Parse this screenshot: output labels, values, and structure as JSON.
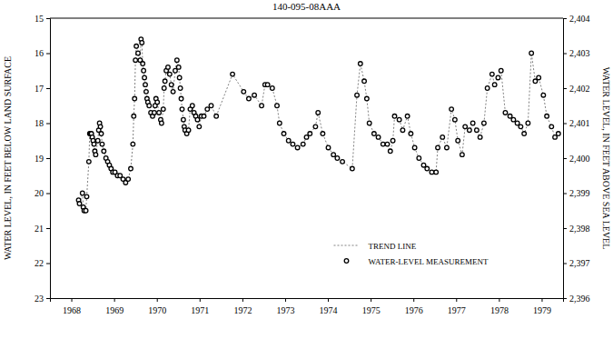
{
  "chart_data": {
    "type": "line",
    "title": "140-095-08AAA",
    "ylabel": "WATER LEVEL, IN FEET BELOW LAND SURFACE",
    "y2label": "WATER LEVEL, IN FEET ABOVE SEA LEVEL",
    "xlim": [
      1968,
      1980
    ],
    "xticks": [
      {
        "value": 1968.5,
        "label": "1968"
      },
      {
        "value": 1969.5,
        "label": "1969"
      },
      {
        "value": 1970.5,
        "label": "1970"
      },
      {
        "value": 1971.5,
        "label": "1971"
      },
      {
        "value": 1972.5,
        "label": "1972"
      },
      {
        "value": 1973.5,
        "label": "1973"
      },
      {
        "value": 1974.5,
        "label": "1974"
      },
      {
        "value": 1975.5,
        "label": "1975"
      },
      {
        "value": 1976.5,
        "label": "1976"
      },
      {
        "value": 1977.5,
        "label": "1977"
      },
      {
        "value": 1978.5,
        "label": "1978"
      },
      {
        "value": 1979.5,
        "label": "1979"
      }
    ],
    "ylim": [
      23,
      15
    ],
    "yticks": [
      15,
      16,
      17,
      18,
      19,
      20,
      21,
      22,
      23
    ],
    "y2lim": [
      2396,
      2404
    ],
    "y2ticks": [
      {
        "value": 2404,
        "label": "2,404"
      },
      {
        "value": 2403,
        "label": "2,403"
      },
      {
        "value": 2402,
        "label": "2,402"
      },
      {
        "value": 2401,
        "label": "2,401"
      },
      {
        "value": 2400,
        "label": "2,400"
      },
      {
        "value": 2399,
        "label": "2,399"
      },
      {
        "value": 2398,
        "label": "2,398"
      },
      {
        "value": 2397,
        "label": "2,397"
      },
      {
        "value": 2396,
        "label": "2,396"
      }
    ],
    "legend": "lower center",
    "x": [
      1968.67,
      1968.69,
      1968.76,
      1968.78,
      1968.8,
      1968.84,
      1968.86,
      1968.91,
      1968.93,
      1968.95,
      1968.97,
      1968.99,
      1969.01,
      1969.03,
      1969.05,
      1969.07,
      1969.12,
      1969.14,
      1969.16,
      1969.18,
      1969.2,
      1969.22,
      1969.26,
      1969.31,
      1969.35,
      1969.39,
      1969.43,
      1969.47,
      1969.52,
      1969.58,
      1969.64,
      1969.71,
      1969.77,
      1969.83,
      1969.89,
      1969.94,
      1969.96,
      1969.98,
      1970.0,
      1970.02,
      1970.06,
      1970.11,
      1970.13,
      1970.15,
      1970.17,
      1970.19,
      1970.21,
      1970.23,
      1970.25,
      1970.27,
      1970.29,
      1970.32,
      1970.36,
      1970.4,
      1970.44,
      1970.46,
      1970.48,
      1970.51,
      1970.55,
      1970.59,
      1970.61,
      1970.65,
      1970.67,
      1970.69,
      1970.72,
      1970.76,
      1970.8,
      1970.84,
      1970.88,
      1970.93,
      1970.97,
      1971.01,
      1971.03,
      1971.05,
      1971.07,
      1971.09,
      1971.12,
      1971.14,
      1971.16,
      1971.2,
      1971.24,
      1971.28,
      1971.33,
      1971.37,
      1971.41,
      1971.45,
      1971.49,
      1971.54,
      1971.6,
      1971.68,
      1971.77,
      1971.89,
      1972.27,
      1972.53,
      1972.65,
      1972.78,
      1972.95,
      1973.03,
      1973.09,
      1973.2,
      1973.31,
      1973.37,
      1973.47,
      1973.58,
      1973.68,
      1973.79,
      1973.92,
      1974.0,
      1974.08,
      1974.21,
      1974.27,
      1974.38,
      1974.51,
      1974.63,
      1974.72,
      1974.84,
      1975.07,
      1975.18,
      1975.26,
      1975.35,
      1975.41,
      1975.47,
      1975.58,
      1975.68,
      1975.79,
      1975.89,
      1975.96,
      1976.02,
      1976.06,
      1976.17,
      1976.25,
      1976.36,
      1976.44,
      1976.53,
      1976.63,
      1976.74,
      1976.82,
      1976.93,
      1977.03,
      1977.07,
      1977.18,
      1977.28,
      1977.39,
      1977.47,
      1977.54,
      1977.64,
      1977.71,
      1977.81,
      1977.89,
      1977.98,
      1978.06,
      1978.15,
      1978.23,
      1978.34,
      1978.4,
      1978.48,
      1978.55,
      1978.65,
      1978.76,
      1978.84,
      1978.93,
      1979.01,
      1979.09,
      1979.18,
      1979.26,
      1979.35,
      1979.43,
      1979.54,
      1979.62,
      1979.73,
      1979.81,
      1979.89
    ],
    "series": [
      {
        "name": "TREND LINE",
        "type": "line",
        "line_style": "dotted",
        "color": "#808080",
        "values": [
          20.2,
          20.3,
          20.0,
          20.4,
          20.5,
          20.5,
          20.1,
          19.1,
          18.3,
          18.3,
          18.3,
          18.4,
          18.5,
          18.6,
          18.8,
          18.9,
          18.5,
          18.2,
          18.0,
          18.1,
          18.3,
          18.6,
          18.8,
          19.0,
          19.1,
          19.2,
          19.3,
          19.4,
          19.4,
          19.5,
          19.5,
          19.6,
          19.7,
          19.6,
          19.3,
          18.6,
          17.8,
          17.3,
          16.2,
          15.8,
          16.0,
          16.2,
          15.6,
          15.7,
          16.3,
          16.5,
          16.7,
          16.9,
          17.1,
          17.3,
          17.4,
          17.5,
          17.7,
          17.8,
          17.7,
          17.5,
          17.3,
          17.4,
          17.7,
          17.9,
          18.0,
          17.6,
          17.0,
          16.8,
          16.5,
          16.4,
          16.6,
          16.9,
          17.1,
          16.5,
          16.2,
          16.4,
          16.7,
          17.0,
          17.3,
          17.6,
          17.9,
          18.1,
          18.2,
          18.3,
          18.2,
          17.6,
          17.5,
          17.7,
          17.8,
          17.9,
          18.1,
          17.8,
          17.8,
          17.6,
          17.5,
          17.8,
          16.6,
          17.1,
          17.3,
          17.2,
          17.5,
          16.9,
          16.9,
          17.0,
          17.5,
          18.0,
          18.3,
          18.5,
          18.6,
          18.7,
          18.6,
          18.4,
          18.3,
          18.1,
          17.7,
          18.3,
          18.7,
          18.9,
          19.0,
          19.1,
          19.3,
          17.2,
          16.3,
          16.8,
          17.3,
          18.0,
          18.3,
          18.4,
          18.6,
          18.6,
          18.8,
          18.5,
          17.8,
          17.9,
          18.2,
          17.8,
          18.3,
          18.7,
          19.0,
          19.2,
          19.3,
          19.4,
          19.4,
          18.7,
          18.4,
          18.7,
          17.6,
          17.9,
          18.5,
          18.9,
          18.1,
          18.2,
          18.0,
          18.2,
          18.4,
          18.0,
          17.0,
          16.6,
          16.9,
          16.7,
          16.5,
          17.7,
          17.8,
          17.9,
          18.0,
          18.1,
          18.3,
          18.0,
          16.0,
          16.8,
          16.7,
          17.2,
          17.8,
          18.1,
          18.4,
          18.3
        ]
      },
      {
        "name": "WATER-LEVEL MEASUREMENT",
        "type": "scatter",
        "marker": "circle",
        "color": "#000000",
        "values": [
          20.2,
          20.3,
          20.0,
          20.4,
          20.5,
          20.5,
          20.1,
          19.1,
          18.3,
          18.3,
          18.3,
          18.4,
          18.5,
          18.6,
          18.8,
          18.9,
          18.5,
          18.2,
          18.0,
          18.1,
          18.3,
          18.6,
          18.8,
          19.0,
          19.1,
          19.2,
          19.3,
          19.4,
          19.4,
          19.5,
          19.5,
          19.6,
          19.7,
          19.6,
          19.3,
          18.6,
          17.8,
          17.3,
          16.2,
          15.8,
          16.0,
          16.2,
          15.6,
          15.7,
          16.3,
          16.5,
          16.7,
          16.9,
          17.1,
          17.3,
          17.4,
          17.5,
          17.7,
          17.8,
          17.7,
          17.5,
          17.3,
          17.4,
          17.7,
          17.9,
          18.0,
          17.6,
          17.0,
          16.8,
          16.5,
          16.4,
          16.6,
          16.9,
          17.1,
          16.5,
          16.2,
          16.4,
          16.7,
          17.0,
          17.3,
          17.6,
          17.9,
          18.1,
          18.2,
          18.3,
          18.2,
          17.6,
          17.5,
          17.7,
          17.8,
          17.9,
          18.1,
          17.8,
          17.8,
          17.6,
          17.5,
          17.8,
          16.6,
          17.1,
          17.3,
          17.2,
          17.5,
          16.9,
          16.9,
          17.0,
          17.5,
          18.0,
          18.3,
          18.5,
          18.6,
          18.7,
          18.6,
          18.4,
          18.3,
          18.1,
          17.7,
          18.3,
          18.7,
          18.9,
          19.0,
          19.1,
          19.3,
          17.2,
          16.3,
          16.8,
          17.3,
          18.0,
          18.3,
          18.4,
          18.6,
          18.6,
          18.8,
          18.5,
          17.8,
          17.9,
          18.2,
          17.8,
          18.3,
          18.7,
          19.0,
          19.2,
          19.3,
          19.4,
          19.4,
          18.7,
          18.4,
          18.7,
          17.6,
          17.9,
          18.5,
          18.9,
          18.1,
          18.2,
          18.0,
          18.2,
          18.4,
          18.0,
          17.0,
          16.6,
          16.9,
          16.7,
          16.5,
          17.7,
          17.8,
          17.9,
          18.0,
          18.1,
          18.3,
          18.0,
          16.0,
          16.8,
          16.7,
          17.2,
          17.8,
          18.1,
          18.4,
          18.3
        ]
      }
    ]
  }
}
